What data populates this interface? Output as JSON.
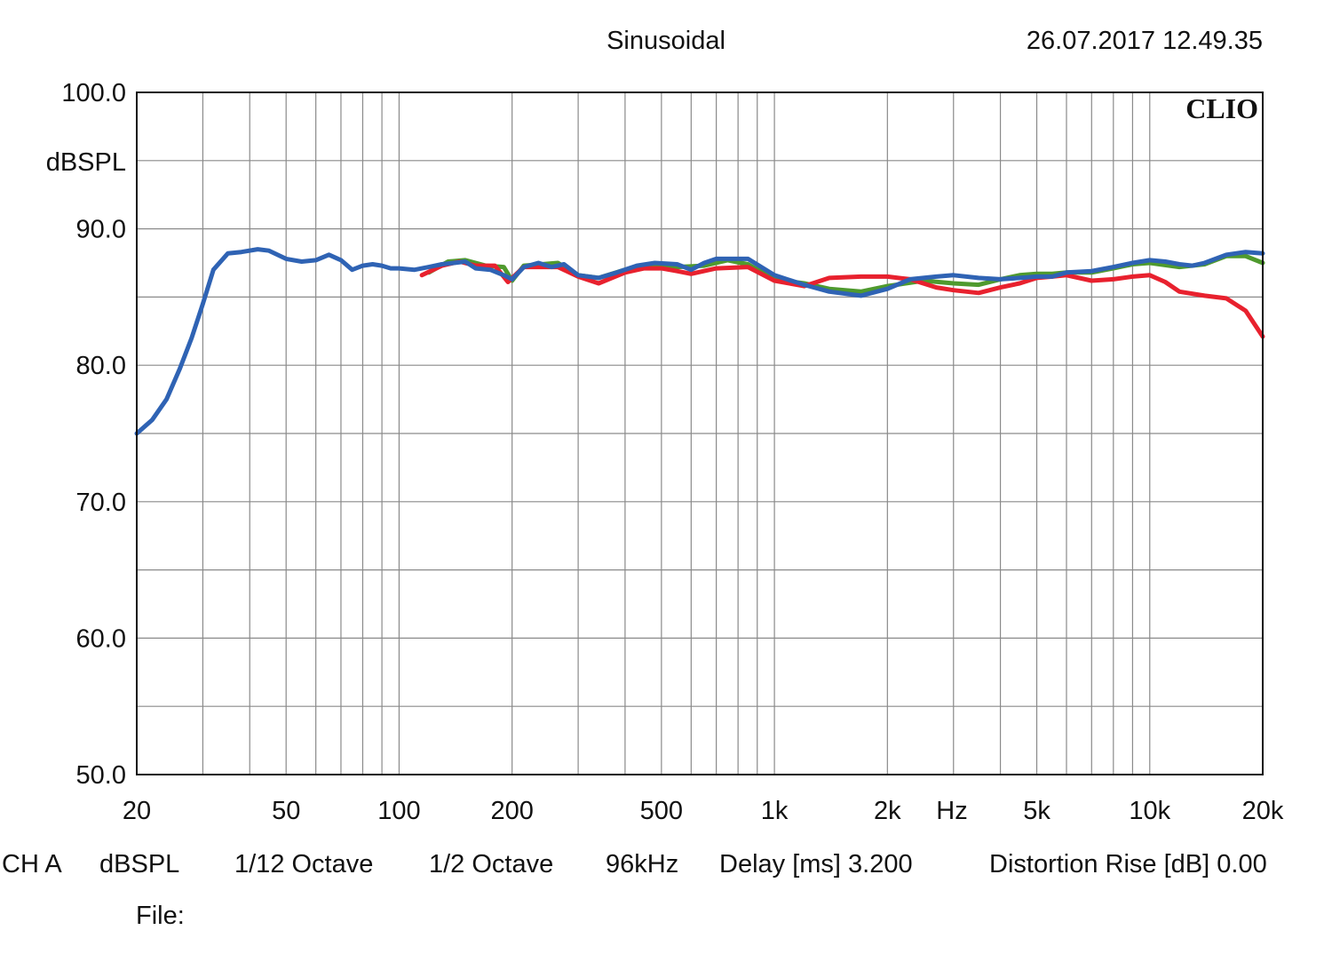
{
  "header": {
    "mode": "Sinusoidal",
    "datetime": "26.07.2017 12.49.35"
  },
  "brand": "CLIO",
  "footer": {
    "channel": "CH A",
    "unit": "dBSPL",
    "resolution": "1/12 Octave",
    "smoothing": "1/2 Octave",
    "sample_rate": "96kHz",
    "delay": "Delay [ms] 3.200",
    "distortion": "Distortion Rise [dB] 0.00",
    "file": "File:"
  },
  "chart_data": {
    "type": "line",
    "title": "Sinusoidal",
    "xlabel": "Hz",
    "ylabel": "dBSPL",
    "xscale": "log",
    "xlim": [
      20,
      20000
    ],
    "ylim": [
      50,
      100
    ],
    "y_ticks": [
      "100.0",
      "90.0",
      "80.0",
      "70.0",
      "60.0",
      "50.0"
    ],
    "x_ticks": [
      {
        "value": 20,
        "label": "20"
      },
      {
        "value": 50,
        "label": "50"
      },
      {
        "value": 100,
        "label": "100"
      },
      {
        "value": 200,
        "label": "200"
      },
      {
        "value": 500,
        "label": "500"
      },
      {
        "value": 1000,
        "label": "1k"
      },
      {
        "value": 2000,
        "label": "2k"
      },
      {
        "value": 5000,
        "label": "5k"
      },
      {
        "value": 10000,
        "label": "10k"
      },
      {
        "value": 20000,
        "label": "20k"
      }
    ],
    "grid": true,
    "series": [
      {
        "color": "#4f9a2e",
        "points": [
          [
            120,
            86.8
          ],
          [
            135,
            87.6
          ],
          [
            150,
            87.7
          ],
          [
            170,
            87.3
          ],
          [
            190,
            87.2
          ],
          [
            200,
            86.2
          ],
          [
            215,
            87.3
          ],
          [
            240,
            87.4
          ],
          [
            265,
            87.5
          ],
          [
            300,
            86.6
          ],
          [
            340,
            86.4
          ],
          [
            400,
            87.0
          ],
          [
            450,
            87.3
          ],
          [
            550,
            87.2
          ],
          [
            650,
            87.3
          ],
          [
            750,
            87.7
          ],
          [
            850,
            87.4
          ],
          [
            1000,
            86.3
          ],
          [
            1200,
            86.0
          ],
          [
            1400,
            85.6
          ],
          [
            1700,
            85.4
          ],
          [
            2000,
            85.8
          ],
          [
            2500,
            86.2
          ],
          [
            3000,
            86.0
          ],
          [
            3500,
            85.9
          ],
          [
            4000,
            86.3
          ],
          [
            4500,
            86.6
          ],
          [
            5000,
            86.7
          ],
          [
            5500,
            86.7
          ],
          [
            6000,
            86.8
          ],
          [
            7000,
            86.8
          ],
          [
            8000,
            87.1
          ],
          [
            9000,
            87.4
          ],
          [
            10000,
            87.5
          ],
          [
            12000,
            87.2
          ],
          [
            14000,
            87.4
          ],
          [
            16000,
            88.0
          ],
          [
            18000,
            88.0
          ],
          [
            20000,
            87.5
          ]
        ]
      },
      {
        "color": "#e8212e",
        "points": [
          [
            115,
            86.6
          ],
          [
            130,
            87.3
          ],
          [
            145,
            87.6
          ],
          [
            160,
            87.3
          ],
          [
            180,
            87.3
          ],
          [
            195,
            86.1
          ],
          [
            215,
            87.2
          ],
          [
            240,
            87.2
          ],
          [
            265,
            87.2
          ],
          [
            300,
            86.5
          ],
          [
            340,
            86.0
          ],
          [
            400,
            86.8
          ],
          [
            450,
            87.1
          ],
          [
            500,
            87.1
          ],
          [
            550,
            86.9
          ],
          [
            600,
            86.7
          ],
          [
            700,
            87.1
          ],
          [
            850,
            87.2
          ],
          [
            1000,
            86.2
          ],
          [
            1200,
            85.8
          ],
          [
            1400,
            86.4
          ],
          [
            1700,
            86.5
          ],
          [
            2000,
            86.5
          ],
          [
            2300,
            86.3
          ],
          [
            2700,
            85.7
          ],
          [
            3000,
            85.5
          ],
          [
            3500,
            85.3
          ],
          [
            4000,
            85.7
          ],
          [
            4500,
            86.0
          ],
          [
            5000,
            86.4
          ],
          [
            5500,
            86.5
          ],
          [
            6000,
            86.6
          ],
          [
            7000,
            86.2
          ],
          [
            8000,
            86.3
          ],
          [
            9000,
            86.5
          ],
          [
            10000,
            86.6
          ],
          [
            11000,
            86.1
          ],
          [
            12000,
            85.4
          ],
          [
            14000,
            85.1
          ],
          [
            16000,
            84.9
          ],
          [
            18000,
            84.0
          ],
          [
            20000,
            82.1
          ]
        ]
      },
      {
        "color": "#2f63b4",
        "points": [
          [
            20,
            75.0
          ],
          [
            22,
            76.0
          ],
          [
            24,
            77.5
          ],
          [
            26,
            79.7
          ],
          [
            28,
            82.0
          ],
          [
            30,
            84.5
          ],
          [
            32,
            87.0
          ],
          [
            35,
            88.2
          ],
          [
            38,
            88.3
          ],
          [
            42,
            88.5
          ],
          [
            45,
            88.4
          ],
          [
            50,
            87.8
          ],
          [
            55,
            87.6
          ],
          [
            60,
            87.7
          ],
          [
            65,
            88.1
          ],
          [
            70,
            87.7
          ],
          [
            75,
            87.0
          ],
          [
            80,
            87.3
          ],
          [
            85,
            87.4
          ],
          [
            90,
            87.3
          ],
          [
            95,
            87.1
          ],
          [
            100,
            87.1
          ],
          [
            110,
            87.0
          ],
          [
            120,
            87.2
          ],
          [
            130,
            87.4
          ],
          [
            140,
            87.5
          ],
          [
            150,
            87.6
          ],
          [
            160,
            87.1
          ],
          [
            175,
            87.0
          ],
          [
            190,
            86.6
          ],
          [
            200,
            86.3
          ],
          [
            215,
            87.2
          ],
          [
            235,
            87.5
          ],
          [
            255,
            87.2
          ],
          [
            275,
            87.4
          ],
          [
            300,
            86.6
          ],
          [
            340,
            86.4
          ],
          [
            380,
            86.8
          ],
          [
            430,
            87.3
          ],
          [
            480,
            87.5
          ],
          [
            550,
            87.4
          ],
          [
            600,
            87.0
          ],
          [
            650,
            87.5
          ],
          [
            700,
            87.8
          ],
          [
            850,
            87.8
          ],
          [
            1000,
            86.6
          ],
          [
            1200,
            85.9
          ],
          [
            1400,
            85.4
          ],
          [
            1700,
            85.1
          ],
          [
            2000,
            85.6
          ],
          [
            2300,
            86.3
          ],
          [
            2700,
            86.5
          ],
          [
            3000,
            86.6
          ],
          [
            3500,
            86.4
          ],
          [
            4000,
            86.3
          ],
          [
            4500,
            86.4
          ],
          [
            5000,
            86.5
          ],
          [
            5500,
            86.5
          ],
          [
            6000,
            86.8
          ],
          [
            7000,
            86.9
          ],
          [
            8000,
            87.2
          ],
          [
            9000,
            87.5
          ],
          [
            10000,
            87.7
          ],
          [
            11000,
            87.6
          ],
          [
            12000,
            87.4
          ],
          [
            13000,
            87.3
          ],
          [
            14000,
            87.5
          ],
          [
            16000,
            88.1
          ],
          [
            18000,
            88.3
          ],
          [
            20000,
            88.2
          ]
        ]
      }
    ]
  }
}
